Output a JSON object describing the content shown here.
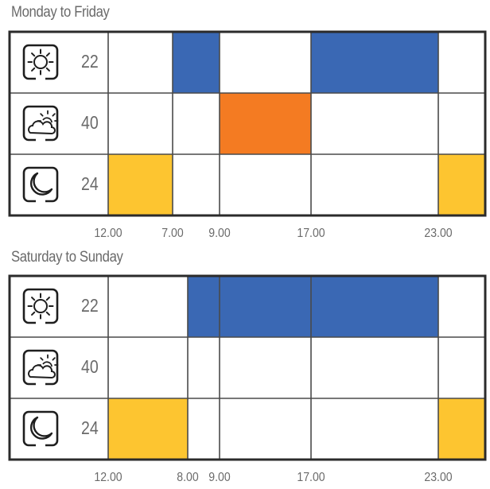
{
  "colors": {
    "blue": "#3a68b4",
    "orange": "#f47b22",
    "yellow": "#fdc530",
    "border": "#2b2b2b",
    "grid": "#4a4a4a",
    "text": "#6a6a6a"
  },
  "panels": [
    {
      "title": "Monday to Friday",
      "rows": [
        {
          "icon": "sun-icon",
          "value": "22"
        },
        {
          "icon": "cloud-sun-icon",
          "value": "40"
        },
        {
          "icon": "moon-icon",
          "value": "24"
        }
      ],
      "columns": [
        "12.00",
        "7.00",
        "9.00",
        "17.00",
        "23.00"
      ],
      "fills": [
        {
          "row": 0,
          "from_col": 1,
          "to_col": 2,
          "color": "blue"
        },
        {
          "row": 0,
          "from_col": 3,
          "to_col": 4,
          "color": "blue"
        },
        {
          "row": 1,
          "from_col": 2,
          "to_col": 3,
          "color": "orange"
        },
        {
          "row": 2,
          "from_col": 0,
          "to_col": 1,
          "color": "yellow"
        },
        {
          "row": 2,
          "from_col": 4,
          "to_col": 5,
          "color": "yellow"
        }
      ]
    },
    {
      "title": "Saturday to Sunday",
      "rows": [
        {
          "icon": "sun-icon",
          "value": "22"
        },
        {
          "icon": "cloud-sun-icon",
          "value": "40"
        },
        {
          "icon": "moon-icon",
          "value": "24"
        }
      ],
      "columns": [
        "12.00",
        "8.00",
        "9.00",
        "17.00",
        "23.00"
      ],
      "fills": [
        {
          "row": 0,
          "from_col": 1,
          "to_col": 4,
          "color": "blue"
        },
        {
          "row": 2,
          "from_col": 0,
          "to_col": 1,
          "color": "yellow"
        },
        {
          "row": 2,
          "from_col": 4,
          "to_col": 5,
          "color": "yellow"
        }
      ]
    }
  ]
}
